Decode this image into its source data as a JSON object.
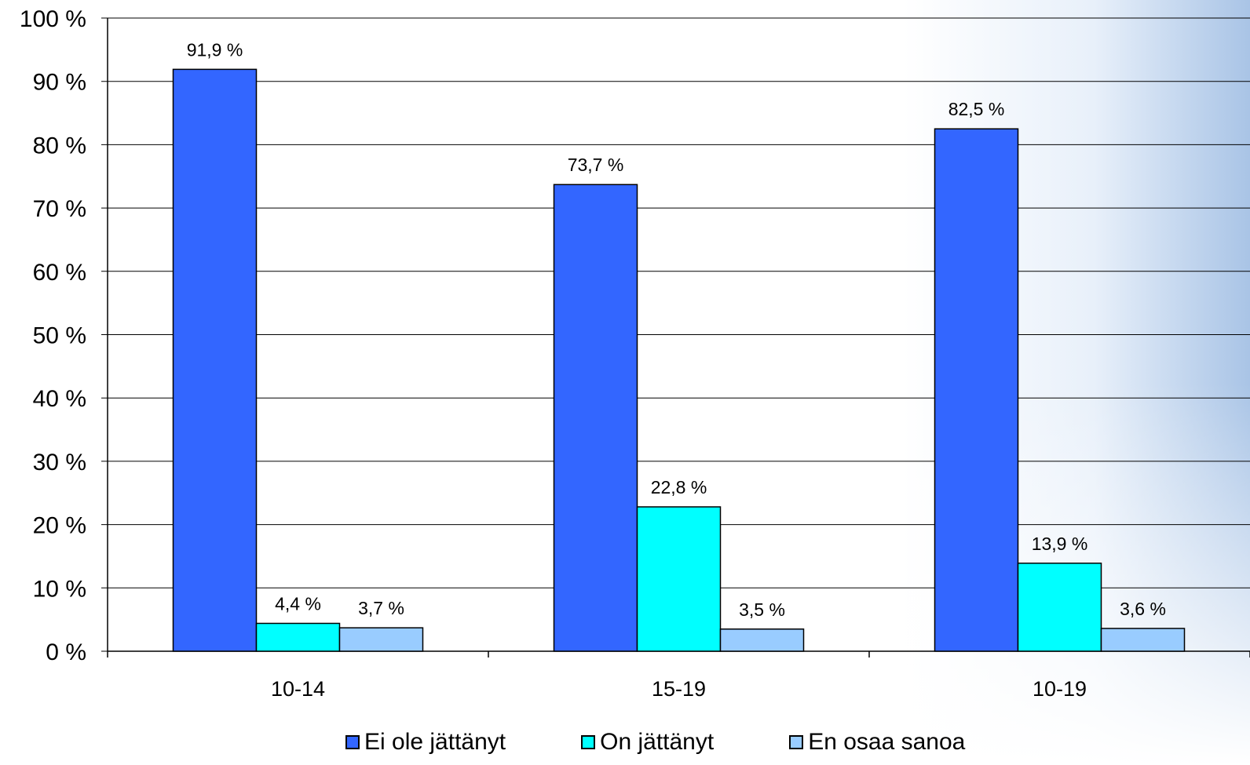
{
  "chart_data": {
    "type": "bar",
    "categories": [
      "10-14",
      "15-19",
      "10-19"
    ],
    "series": [
      {
        "name": "Ei ole jättänyt",
        "values": [
          91.9,
          73.7,
          82.5
        ],
        "labels": [
          "91,9 %",
          "73,7 %",
          "82,5 %"
        ],
        "color": "#3366FF"
      },
      {
        "name": "On jättänyt",
        "values": [
          4.4,
          22.8,
          13.9
        ],
        "labels": [
          "4,4 %",
          "22,8 %",
          "13,9 %"
        ],
        "color": "#00FFFF"
      },
      {
        "name": "En osaa sanoa",
        "values": [
          3.7,
          3.5,
          3.6
        ],
        "labels": [
          "3,7 %",
          "3,5 %",
          "3,6 %"
        ],
        "color": "#99CCFF"
      }
    ],
    "y_ticks": [
      "0 %",
      "10 %",
      "20 %",
      "30 %",
      "40 %",
      "50 %",
      "60 %",
      "70 %",
      "80 %",
      "90 %",
      "100 %"
    ],
    "ylim": [
      0,
      100
    ],
    "grid": true,
    "legend_position": "bottom"
  }
}
